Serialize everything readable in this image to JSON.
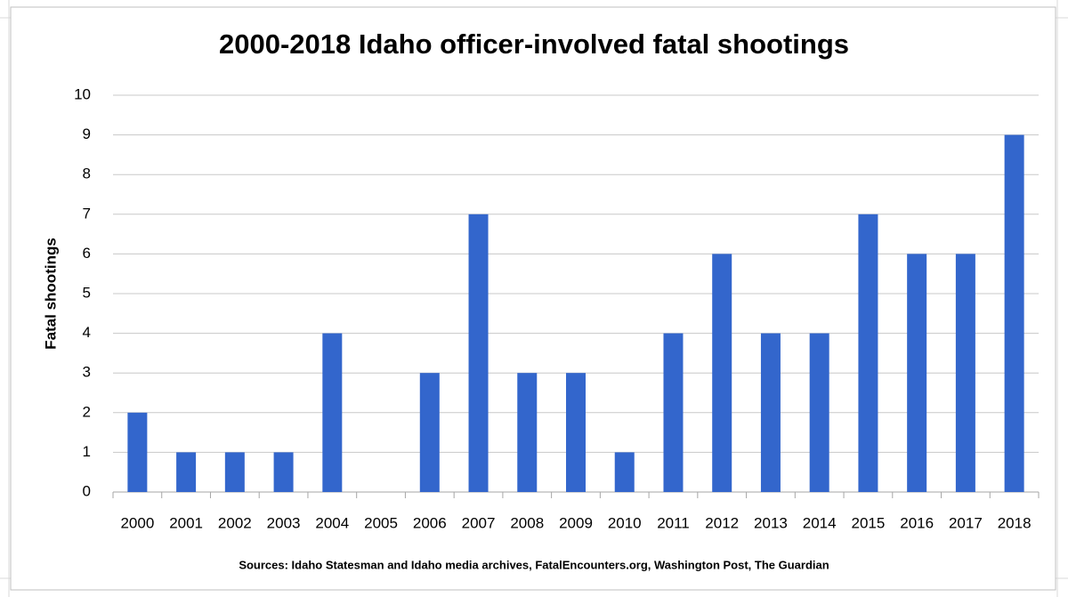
{
  "chart_data": {
    "type": "bar",
    "title": "2000-2018 Idaho officer-involved fatal shootings",
    "y_label": "Fatal shootings",
    "source": "Sources: Idaho Statesman and Idaho media archives, FatalEncounters.org,   Washington Post, The Guardian",
    "categories": [
      "2000",
      "2001",
      "2002",
      "2003",
      "2004",
      "2005",
      "2006",
      "2007",
      "2008",
      "2009",
      "2010",
      "2011",
      "2012",
      "2013",
      "2014",
      "2015",
      "2016",
      "2017",
      "2018"
    ],
    "values": [
      2,
      1,
      1,
      1,
      4,
      0,
      3,
      7,
      3,
      3,
      1,
      4,
      6,
      4,
      4,
      7,
      6,
      6,
      9
    ],
    "color": "#3366cc",
    "ylim": [
      0,
      10
    ],
    "yticks": [
      0,
      1,
      2,
      3,
      4,
      5,
      6,
      7,
      8,
      9,
      10
    ],
    "grid": true
  }
}
